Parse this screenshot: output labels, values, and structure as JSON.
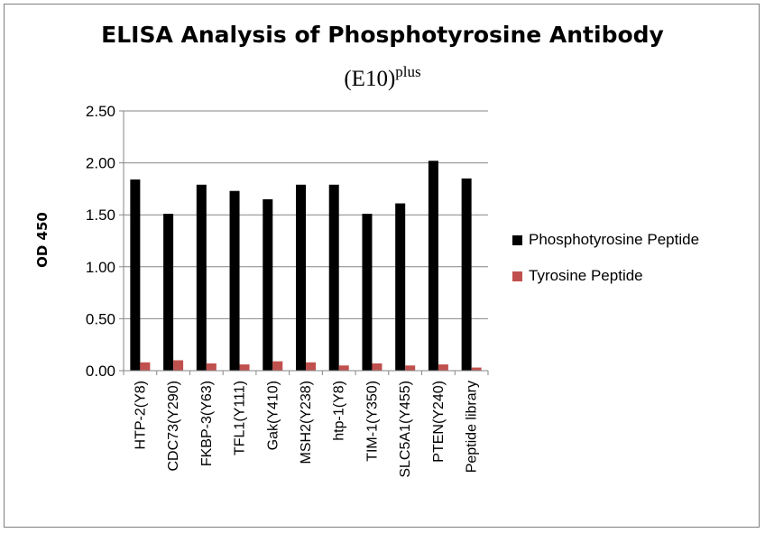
{
  "chart_data": {
    "type": "bar",
    "title": "ELISA Analysis of Phosphotyrosine Antibody",
    "subtitle_main": "(E10)",
    "subtitle_sup": "plus",
    "xlabel": "",
    "ylabel": "OD  450",
    "ylim": [
      0,
      2.5
    ],
    "yticks": [
      "0.00",
      "0.50",
      "1.00",
      "1.50",
      "2.00",
      "2.50"
    ],
    "grid": true,
    "legend_position": "right",
    "categories": [
      "HTP-2(Y8)",
      "CDC73(Y290)",
      "FKBP-3(Y63)",
      "TFL1(Y111)",
      "Gak(Y410)",
      "MSH2(Y238)",
      "htp-1(Y8)",
      "TIM-1(Y350)",
      "SLC5A1(Y455)",
      "PTEN(Y240)",
      "Peptide library"
    ],
    "series": [
      {
        "name": "Phosphotyrosine Peptide",
        "color": "#000000",
        "values": [
          1.84,
          1.51,
          1.79,
          1.73,
          1.65,
          1.79,
          1.79,
          1.51,
          1.61,
          2.02,
          1.85
        ]
      },
      {
        "name": "Tyrosine Peptide",
        "color": "#c0504d",
        "values": [
          0.08,
          0.1,
          0.07,
          0.06,
          0.09,
          0.08,
          0.05,
          0.07,
          0.05,
          0.06,
          0.03
        ]
      }
    ]
  }
}
